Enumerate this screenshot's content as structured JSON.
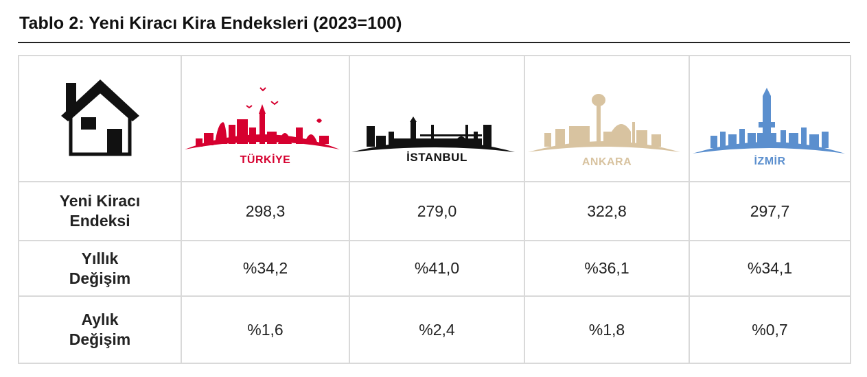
{
  "title": "Tablo 2: Yeni Kiracı Kira Endeksleri (2023=100)",
  "columns": [
    {
      "name": "TÜRKİYE",
      "color": "#d6002f"
    },
    {
      "name": "İSTANBUL",
      "color": "#111111"
    },
    {
      "name": "ANKARA",
      "color": "#d8c3a0"
    },
    {
      "name": "İZMİR",
      "color": "#5b8fce"
    }
  ],
  "icons": {
    "corner": "house-icon",
    "turkiye": "skyline-turkiye-icon",
    "istanbul": "skyline-istanbul-icon",
    "ankara": "skyline-ankara-icon",
    "izmir": "skyline-izmir-icon"
  },
  "rows": [
    {
      "label_line1": "Yeni Kiracı",
      "label_line2": "Endeksi",
      "values": [
        "298,3",
        "279,0",
        "322,8",
        "297,7"
      ]
    },
    {
      "label_line1": "Yıllık",
      "label_line2": "Değişim",
      "values": [
        "%34,2",
        "%41,0",
        "%36,1",
        "%34,1"
      ]
    },
    {
      "label_line1": "Aylık",
      "label_line2": "Değişim",
      "values": [
        "%1,6",
        "%2,4",
        "%1,8",
        "%0,7"
      ]
    }
  ]
}
